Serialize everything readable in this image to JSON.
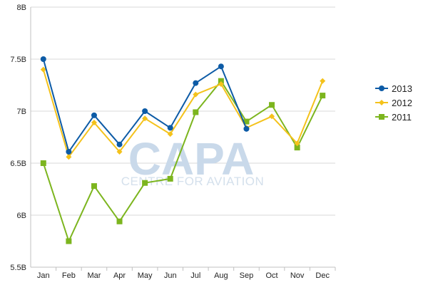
{
  "watermark": {
    "logo": "CAPA",
    "tagline": "CENTRE FOR AVIATION"
  },
  "chart_data": {
    "type": "line",
    "title": "",
    "xlabel": "",
    "ylabel": "",
    "categories": [
      "Jan",
      "Feb",
      "Mar",
      "Apr",
      "May",
      "Jun",
      "Jul",
      "Aug",
      "Sep",
      "Oct",
      "Nov",
      "Dec"
    ],
    "y_ticks": [
      5.5,
      6,
      6.5,
      7,
      7.5,
      8
    ],
    "y_tick_labels": [
      "5.5B",
      "6B",
      "6.5B",
      "7B",
      "7.5B",
      "8B"
    ],
    "ylim": [
      5.5,
      8
    ],
    "grid": "horizontal",
    "legend_position": "right",
    "series": [
      {
        "name": "2013",
        "color": "#0d5ba6",
        "marker": "circle",
        "values": [
          7.5,
          6.61,
          6.96,
          6.68,
          7.0,
          6.84,
          7.27,
          7.43,
          6.83,
          null,
          null,
          null
        ]
      },
      {
        "name": "2012",
        "color": "#f4c21b",
        "marker": "diamond",
        "values": [
          7.4,
          6.56,
          6.89,
          6.61,
          6.93,
          6.78,
          7.16,
          7.26,
          6.84,
          6.95,
          6.69,
          7.29
        ]
      },
      {
        "name": "2011",
        "color": "#7cb51e",
        "marker": "square",
        "values": [
          6.5,
          5.75,
          6.28,
          5.94,
          6.31,
          6.35,
          6.99,
          7.29,
          6.9,
          7.06,
          6.65,
          7.15
        ]
      }
    ]
  }
}
